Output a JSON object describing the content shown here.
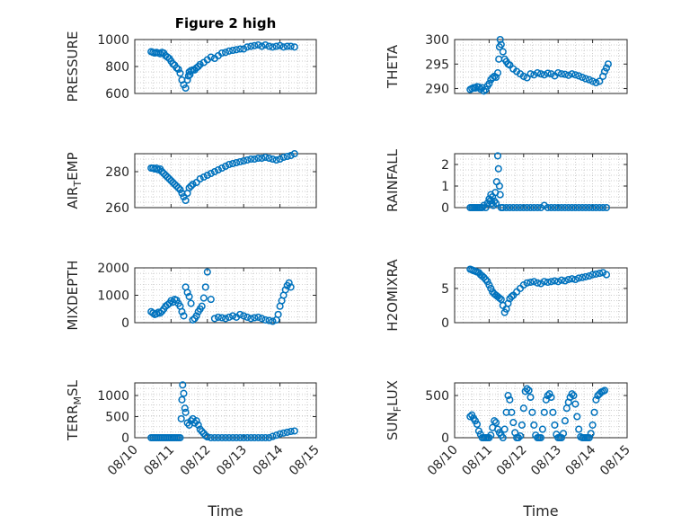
{
  "figure": {
    "title": "Figure 2 high"
  },
  "colors": {
    "marker": "#0072BD",
    "axis": "#262626",
    "grid": "#bdbdbd"
  },
  "chart_data": [
    {
      "type": "scatter",
      "ylabel": "PRESSURE",
      "xlabel": "",
      "ylim": [
        600,
        1000
      ],
      "yticks": [
        600,
        800,
        1000
      ],
      "grid": true,
      "x": [
        10.45,
        10.5,
        10.55,
        10.6,
        10.65,
        10.7,
        10.75,
        10.8,
        10.85,
        10.9,
        10.95,
        11.0,
        11.05,
        11.1,
        11.15,
        11.2,
        11.25,
        11.3,
        11.35,
        11.4,
        11.45,
        11.48,
        11.5,
        11.52,
        11.55,
        11.6,
        11.65,
        11.7,
        11.75,
        11.8,
        11.9,
        12.0,
        12.1,
        12.2,
        12.3,
        12.4,
        12.5,
        12.6,
        12.7,
        12.8,
        12.9,
        13.0,
        13.1,
        13.2,
        13.3,
        13.4,
        13.5,
        13.6,
        13.7,
        13.8,
        13.9,
        14.0,
        14.1,
        14.2,
        14.3,
        14.4
      ],
      "y": [
        910,
        905,
        900,
        905,
        900,
        895,
        905,
        900,
        880,
        870,
        860,
        840,
        820,
        810,
        790,
        780,
        750,
        700,
        665,
        640,
        700,
        730,
        760,
        740,
        770,
        775,
        775,
        790,
        800,
        815,
        830,
        850,
        870,
        860,
        880,
        900,
        905,
        915,
        920,
        925,
        930,
        930,
        945,
        950,
        955,
        960,
        950,
        960,
        950,
        945,
        950,
        955,
        945,
        950,
        950,
        945
      ]
    },
    {
      "type": "scatter",
      "ylabel": "THETA",
      "xlabel": "",
      "ylim": [
        289,
        300
      ],
      "yticks": [
        290,
        295,
        300
      ],
      "grid": true,
      "x": [
        10.45,
        10.5,
        10.55,
        10.6,
        10.65,
        10.7,
        10.75,
        10.8,
        10.85,
        10.9,
        10.95,
        11.0,
        11.05,
        11.1,
        11.15,
        11.2,
        11.25,
        11.28,
        11.3,
        11.32,
        11.35,
        11.4,
        11.45,
        11.5,
        11.55,
        11.6,
        11.7,
        11.8,
        11.9,
        12.0,
        12.1,
        12.2,
        12.3,
        12.4,
        12.5,
        12.6,
        12.7,
        12.8,
        12.9,
        13.0,
        13.1,
        13.2,
        13.3,
        13.4,
        13.5,
        13.6,
        13.7,
        13.8,
        13.9,
        14.0,
        14.1,
        14.2,
        14.3,
        14.35,
        14.4,
        14.45
      ],
      "y": [
        289.8,
        290.0,
        290.2,
        290.1,
        290.4,
        290.3,
        289.9,
        290.2,
        289.5,
        289.8,
        290.5,
        291.0,
        291.8,
        292.2,
        292.5,
        292.3,
        293.2,
        296.0,
        298.5,
        300.0,
        299.0,
        297.5,
        296.0,
        295.5,
        295.0,
        294.8,
        294.0,
        293.5,
        293.0,
        292.5,
        292.2,
        293.0,
        292.8,
        293.2,
        293.0,
        292.8,
        293.1,
        293.0,
        292.6,
        293.2,
        293.0,
        292.9,
        292.7,
        293.0,
        292.8,
        292.6,
        292.3,
        292.0,
        291.8,
        291.5,
        291.2,
        291.5,
        292.5,
        293.5,
        294.2,
        295.0
      ]
    },
    {
      "type": "scatter",
      "ylabel": "AIR_TEMP",
      "xlabel": "",
      "ylim": [
        260,
        290
      ],
      "yticks": [
        260,
        280
      ],
      "grid": true,
      "x": [
        10.45,
        10.5,
        10.55,
        10.6,
        10.65,
        10.7,
        10.75,
        10.8,
        10.85,
        10.9,
        10.95,
        11.0,
        11.05,
        11.1,
        11.15,
        11.2,
        11.25,
        11.3,
        11.35,
        11.4,
        11.45,
        11.5,
        11.55,
        11.6,
        11.7,
        11.8,
        11.9,
        12.0,
        12.1,
        12.2,
        12.3,
        12.4,
        12.5,
        12.6,
        12.7,
        12.8,
        12.9,
        13.0,
        13.1,
        13.2,
        13.3,
        13.4,
        13.5,
        13.6,
        13.7,
        13.8,
        13.9,
        14.0,
        14.1,
        14.2,
        14.3,
        14.4
      ],
      "y": [
        282,
        282,
        281.5,
        282,
        281,
        281.5,
        280,
        279,
        278,
        277,
        276,
        275,
        274,
        273,
        272,
        271,
        270,
        268,
        266,
        264,
        268,
        271,
        272,
        273,
        274,
        276,
        277,
        278,
        279,
        280,
        281,
        282,
        283,
        284,
        284.5,
        285,
        285.5,
        286,
        286.5,
        287,
        287,
        287.5,
        287.5,
        288,
        287.5,
        287,
        286.5,
        287,
        288,
        288.5,
        289,
        290
      ]
    },
    {
      "type": "scatter",
      "ylabel": "RAINFALL",
      "xlabel": "",
      "ylim": [
        0,
        2.5
      ],
      "yticks": [
        0,
        1,
        2
      ],
      "grid": true,
      "x": [
        10.45,
        10.5,
        10.55,
        10.6,
        10.65,
        10.7,
        10.75,
        10.8,
        10.85,
        10.9,
        10.95,
        11.0,
        11.02,
        11.05,
        11.08,
        11.1,
        11.12,
        11.15,
        11.18,
        11.2,
        11.22,
        11.25,
        11.27,
        11.3,
        11.32,
        11.35,
        11.4,
        11.5,
        11.6,
        11.7,
        11.8,
        11.9,
        12.0,
        12.1,
        12.2,
        12.3,
        12.4,
        12.5,
        12.6,
        12.7,
        12.8,
        12.9,
        13.0,
        13.1,
        13.2,
        13.3,
        13.4,
        13.5,
        13.6,
        13.7,
        13.8,
        13.9,
        14.0,
        14.1,
        14.2,
        14.3,
        14.4
      ],
      "y": [
        0,
        0,
        0,
        0,
        0,
        0,
        0,
        0,
        0.1,
        0,
        0.2,
        0.4,
        0.3,
        0.6,
        0.2,
        0.5,
        0.1,
        0.3,
        0.7,
        0.2,
        1.2,
        2.4,
        1.8,
        1.0,
        0.6,
        0,
        0,
        0,
        0,
        0,
        0,
        0,
        0,
        0,
        0,
        0,
        0,
        0,
        0.1,
        0,
        0,
        0,
        0,
        0,
        0,
        0,
        0,
        0,
        0,
        0,
        0,
        0,
        0,
        0,
        0,
        0,
        0
      ]
    },
    {
      "type": "scatter",
      "ylabel": "MIXDEPTH",
      "xlabel": "",
      "ylim": [
        0,
        2000
      ],
      "yticks": [
        0,
        1000,
        2000
      ],
      "grid": true,
      "x": [
        10.45,
        10.5,
        10.55,
        10.6,
        10.65,
        10.7,
        10.75,
        10.8,
        10.85,
        10.9,
        10.95,
        11.0,
        11.05,
        11.1,
        11.15,
        11.2,
        11.25,
        11.3,
        11.35,
        11.4,
        11.45,
        11.5,
        11.55,
        11.6,
        11.65,
        11.7,
        11.75,
        11.8,
        11.85,
        11.9,
        11.95,
        12.0,
        12.1,
        12.2,
        12.3,
        12.4,
        12.5,
        12.6,
        12.7,
        12.8,
        12.9,
        13.0,
        13.1,
        13.2,
        13.3,
        13.4,
        13.5,
        13.6,
        13.7,
        13.8,
        13.9,
        13.95,
        14.0,
        14.05,
        14.1,
        14.15,
        14.2,
        14.25,
        14.3
      ],
      "y": [
        400,
        350,
        300,
        320,
        380,
        350,
        420,
        500,
        600,
        650,
        700,
        800,
        750,
        850,
        820,
        700,
        600,
        400,
        250,
        1300,
        1100,
        950,
        700,
        100,
        150,
        250,
        400,
        500,
        600,
        900,
        1300,
        1850,
        850,
        150,
        200,
        180,
        150,
        200,
        250,
        200,
        300,
        250,
        200,
        150,
        180,
        200,
        150,
        100,
        80,
        50,
        100,
        300,
        600,
        800,
        1000,
        1200,
        1350,
        1450,
        1300
      ]
    },
    {
      "type": "scatter",
      "ylabel": "H2OMIXRA",
      "xlabel": "",
      "ylim": [
        0,
        8
      ],
      "yticks": [
        0,
        5
      ],
      "grid": true,
      "x": [
        10.45,
        10.5,
        10.55,
        10.6,
        10.65,
        10.7,
        10.75,
        10.8,
        10.85,
        10.9,
        10.95,
        11.0,
        11.05,
        11.1,
        11.15,
        11.2,
        11.25,
        11.3,
        11.35,
        11.4,
        11.45,
        11.5,
        11.55,
        11.6,
        11.65,
        11.7,
        11.8,
        11.9,
        12.0,
        12.1,
        12.2,
        12.3,
        12.4,
        12.5,
        12.6,
        12.7,
        12.8,
        12.9,
        13.0,
        13.1,
        13.2,
        13.3,
        13.4,
        13.5,
        13.6,
        13.7,
        13.8,
        13.9,
        14.0,
        14.1,
        14.2,
        14.3,
        14.4
      ],
      "y": [
        7.8,
        7.7,
        7.6,
        7.5,
        7.4,
        7.3,
        7.0,
        6.8,
        6.6,
        6.3,
        6.0,
        5.5,
        5.0,
        4.5,
        4.2,
        4.0,
        3.8,
        3.6,
        3.4,
        2.5,
        1.5,
        2.0,
        2.8,
        3.5,
        3.8,
        4.0,
        4.5,
        5.0,
        5.5,
        5.8,
        5.9,
        6.0,
        5.8,
        5.7,
        6.0,
        5.9,
        6.0,
        6.1,
        6.0,
        6.2,
        6.1,
        6.3,
        6.4,
        6.3,
        6.5,
        6.6,
        6.7,
        6.8,
        7.0,
        7.1,
        7.2,
        7.3,
        7.0
      ]
    },
    {
      "type": "scatter",
      "ylabel": "TERR_MSL",
      "xlabel": "Time",
      "ylim": [
        0,
        1300
      ],
      "yticks": [
        0,
        500,
        1000
      ],
      "grid": true,
      "xticks": [
        "08/10",
        "08/11",
        "08/12",
        "08/13",
        "08/14",
        "08/15"
      ],
      "xlim": [
        10,
        15
      ],
      "x": [
        10.45,
        10.5,
        10.55,
        10.6,
        10.65,
        10.7,
        10.75,
        10.8,
        10.85,
        10.9,
        10.95,
        11.0,
        11.05,
        11.1,
        11.15,
        11.2,
        11.25,
        11.28,
        11.3,
        11.32,
        11.35,
        11.38,
        11.4,
        11.45,
        11.5,
        11.55,
        11.6,
        11.65,
        11.7,
        11.75,
        11.8,
        11.85,
        11.9,
        11.95,
        12.0,
        12.1,
        12.2,
        12.3,
        12.4,
        12.5,
        12.6,
        12.7,
        12.8,
        12.9,
        13.0,
        13.1,
        13.2,
        13.3,
        13.4,
        13.5,
        13.6,
        13.7,
        13.8,
        13.9,
        14.0,
        14.1,
        14.2,
        14.3,
        14.4
      ],
      "y": [
        0,
        0,
        0,
        0,
        0,
        0,
        0,
        0,
        0,
        0,
        0,
        0,
        0,
        0,
        0,
        0,
        0,
        450,
        900,
        1250,
        1050,
        700,
        600,
        350,
        300,
        400,
        450,
        350,
        400,
        300,
        200,
        150,
        100,
        50,
        20,
        0,
        0,
        0,
        0,
        0,
        0,
        0,
        0,
        0,
        0,
        0,
        0,
        0,
        0,
        0,
        0,
        0,
        30,
        60,
        90,
        110,
        130,
        150,
        160
      ]
    },
    {
      "type": "scatter",
      "ylabel": "SUN_FLUX",
      "xlabel": "Time",
      "ylim": [
        0,
        650
      ],
      "yticks": [
        0,
        500
      ],
      "grid": true,
      "xticks": [
        "08/10",
        "08/11",
        "08/12",
        "08/13",
        "08/14",
        "08/15"
      ],
      "xlim": [
        10,
        15
      ],
      "x": [
        10.45,
        10.5,
        10.55,
        10.6,
        10.65,
        10.7,
        10.75,
        10.8,
        10.85,
        10.9,
        10.95,
        11.0,
        11.05,
        11.1,
        11.15,
        11.2,
        11.25,
        11.3,
        11.35,
        11.4,
        11.45,
        11.5,
        11.55,
        11.6,
        11.65,
        11.7,
        11.75,
        11.8,
        11.85,
        11.9,
        11.95,
        12.0,
        12.05,
        12.1,
        12.15,
        12.2,
        12.25,
        12.3,
        12.35,
        12.4,
        12.45,
        12.5,
        12.55,
        12.6,
        12.65,
        12.7,
        12.75,
        12.8,
        12.85,
        12.9,
        12.95,
        13.0,
        13.05,
        13.1,
        13.15,
        13.2,
        13.25,
        13.3,
        13.35,
        13.4,
        13.45,
        13.5,
        13.55,
        13.6,
        13.65,
        13.7,
        13.75,
        13.8,
        13.85,
        13.9,
        13.95,
        14.0,
        14.05,
        14.1,
        14.15,
        14.2,
        14.25,
        14.3,
        14.35
      ],
      "y": [
        250,
        270,
        230,
        200,
        160,
        80,
        40,
        0,
        0,
        0,
        0,
        0,
        30,
        120,
        200,
        180,
        100,
        60,
        30,
        0,
        100,
        300,
        500,
        450,
        300,
        180,
        60,
        0,
        0,
        20,
        150,
        350,
        550,
        580,
        560,
        480,
        300,
        150,
        30,
        0,
        0,
        0,
        100,
        300,
        450,
        500,
        520,
        480,
        300,
        150,
        40,
        0,
        0,
        0,
        50,
        200,
        350,
        420,
        480,
        520,
        500,
        400,
        250,
        100,
        10,
        0,
        0,
        0,
        0,
        0,
        50,
        150,
        300,
        450,
        500,
        520,
        540,
        550,
        560
      ]
    }
  ]
}
